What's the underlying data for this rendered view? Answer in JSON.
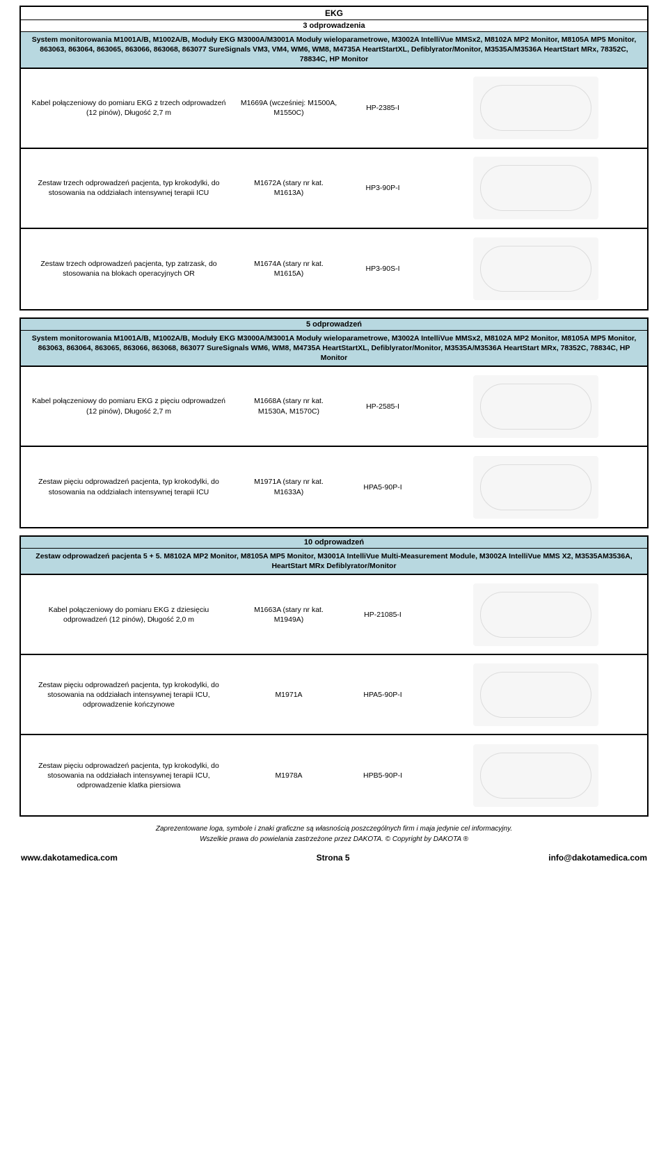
{
  "sec1": {
    "title": "EKG",
    "subtitle": "3 odprowadzenia",
    "header": "System monitorowania M1001A/B, M1002A/B, Moduły EKG M3000A/M3001A Moduły wieloparametrowe, M3002A IntelliVue MMSx2, M8102A MP2 Monitor, M8105A MP5 Monitor, 863063, 863064, 863065, 863066, 863068, 863077 SureSignals VM3, VM4, WM6, WM8, M4735A HeartStartXL, Defiblyrator/Monitor, M3535A/M3536A HeartStart MRx, 78352C, 78834C, HP Monitor",
    "rows": [
      {
        "desc": "Kabel połączeniowy do pomiaru EKG z trzech odprowadzeń (12 pinów), Długość 2,7 m",
        "ref": "M1669A (wcześniej: M1500A, M1550C)",
        "code": "HP-2385-I"
      },
      {
        "desc": "Zestaw trzech odprowadzeń pacjenta, typ krokodylki, do stosowania na oddziałach intensywnej terapii ICU",
        "ref": "M1672A (stary nr kat. M1613A)",
        "code": "HP3-90P-I"
      },
      {
        "desc": "Zestaw trzech odprowadzeń pacjenta, typ zatrzask, do stosowania na blokach operacyjnych OR",
        "ref": "M1674A (stary nr kat. M1615A)",
        "code": "HP3-90S-I"
      }
    ]
  },
  "sec2": {
    "subtitle": "5 odprowadzeń",
    "header": "System monitorowania M1001A/B, M1002A/B, Moduły EKG M3000A/M3001A Moduły wieloparametrowe, M3002A IntelliVue MMSx2, M8102A MP2 Monitor, M8105A MP5 Monitor, 863063, 863064, 863065, 863066, 863068, 863077 SureSignals WM6, WM8, M4735A HeartStartXL, Defiblyrator/Monitor, M3535A/M3536A HeartStart MRx, 78352C, 78834C, HP Monitor",
    "rows": [
      {
        "desc": "Kabel połączeniowy do pomiaru EKG z pięciu odprowadzeń (12 pinów), Długość 2,7 m",
        "ref": "M1668A (stary nr kat. M1530A, M1570C)",
        "code": "HP-2585-I"
      },
      {
        "desc": "Zestaw pięciu odprowadzeń pacjenta, typ krokodylki, do stosowania na oddziałach intensywnej terapii ICU",
        "ref": "M1971A (stary nr kat. M1633A)",
        "code": "HPA5-90P-I"
      }
    ]
  },
  "sec3": {
    "subtitle": "10 odprowadzeń",
    "header": "Zestaw odprowadzeń pacjenta 5 + 5. M8102A MP2 Monitor, M8105A MP5 Monitor, M3001A IntelliVue Multi-Measurement Module, M3002A IntelliVue MMS X2, M3535AM3536A, HeartStart MRx Defiblyrator/Monitor",
    "rows": [
      {
        "desc": "Kabel połączeniowy do pomiaru EKG z dziesięciu odprowadzeń (12 pinów), Długość 2,0 m",
        "ref": "M1663A (stary nr kat. M1949A)",
        "code": "HP-21085-I"
      },
      {
        "desc": "Zestaw pięciu odprowadzeń pacjenta, typ krokodylki, do stosowania na oddziałach intensywnej terapii ICU, odprowadzenie kończynowe",
        "ref": "M1971A",
        "code": "HPA5-90P-I"
      },
      {
        "desc": "Zestaw pięciu odprowadzeń pacjenta, typ krokodylki, do stosowania na oddziałach intensywnej terapii ICU, odprowadzenie klatka piersiowa",
        "ref": "M1978A",
        "code": "HPB5-90P-I"
      }
    ]
  },
  "footer": {
    "line1": "Zaprezentowane loga, symbole i znaki graficzne są własnością poszczególnych firm i maja jedynie cel informacyjny.",
    "line2": "Wszelkie prawa do powielania zastrzeżone przez DAKOTA. © Copyright by DAKOTA ®"
  },
  "bottom": {
    "left": "www.dakotamedica.com",
    "center": "Strona 5",
    "right": "info@dakotamedica.com"
  }
}
